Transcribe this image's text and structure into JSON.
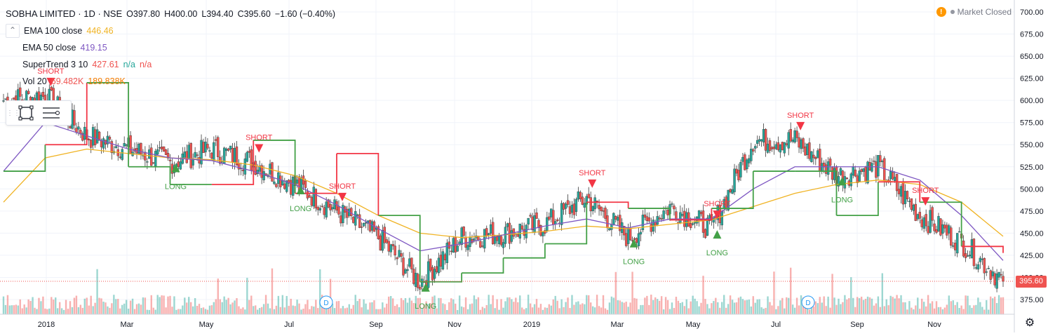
{
  "header": {
    "title": "SOBHA LIMITED · 1D · NSE",
    "open": "O397.80",
    "high": "H400.00",
    "low": "L394.40",
    "close": "C395.60",
    "change": "−1.60 (−0.40%)",
    "status": "Market Closed",
    "status_icon": "warning-icon"
  },
  "indicators": [
    {
      "name": "EMA 100 close",
      "value": "446.46",
      "color": "#f0b323"
    },
    {
      "name": "EMA 50 close",
      "value": "419.15",
      "color": "#7e57c2"
    },
    {
      "name": "SuperTrend 3 10",
      "value": "427.61",
      "value_color": "#ef5350",
      "extra1": "n/a",
      "extra1_color": "#26a69a",
      "extra2": "n/a",
      "extra2_color": "#ef5350"
    },
    {
      "name": "Vol 20",
      "value": "69.482K",
      "value_color": "#ef5350",
      "extra1": "189.838K",
      "extra1_color": "#f57c00"
    }
  ],
  "colors": {
    "up": "#26a69a",
    "down": "#ef5350",
    "ema100": "#f0b323",
    "ema50": "#7e57c2",
    "st_up": "#43a047",
    "st_down": "#f23645",
    "grid": "#f0f3fa",
    "axis_text": "#131722"
  },
  "price_axis": {
    "ticks": [
      "700.00",
      "675.00",
      "650.00",
      "625.00",
      "600.00",
      "575.00",
      "550.00",
      "525.00",
      "500.00",
      "475.00",
      "450.00",
      "425.00",
      "400.00",
      "375.00"
    ],
    "current_price": "395.60"
  },
  "time_axis": {
    "labels": [
      "2018",
      "Mar",
      "May",
      "Jul",
      "Sep",
      "Nov",
      "2019",
      "Mar",
      "May",
      "Jul",
      "Sep",
      "Nov"
    ]
  },
  "signals": {
    "long_label": "LONG",
    "short_label": "SHORT",
    "dividend_label": "D"
  },
  "chart_data": {
    "type": "candlestick",
    "symbol": "SOBHA LIMITED",
    "interval": "1D",
    "exchange": "NSE",
    "x": [
      "2017-12",
      "2018-01",
      "2018-02",
      "2018-03",
      "2018-04",
      "2018-05",
      "2018-06",
      "2018-07",
      "2018-08",
      "2018-09",
      "2018-10",
      "2018-11",
      "2018-12",
      "2019-01",
      "2019-02",
      "2019-03",
      "2019-04",
      "2019-05",
      "2019-06",
      "2019-07",
      "2019-08",
      "2019-09",
      "2019-10",
      "2019-11",
      "2019-12"
    ],
    "series": [
      {
        "name": "Close",
        "values": [
          600,
          605,
          560,
          545,
          530,
          545,
          530,
          505,
          475,
          445,
          395,
          445,
          450,
          460,
          490,
          445,
          480,
          455,
          555,
          555,
          515,
          525,
          470,
          440,
          395.6
        ]
      },
      {
        "name": "EMA 100 close",
        "values": [
          485,
          535,
          545,
          540,
          535,
          533,
          527,
          515,
          495,
          470,
          450,
          445,
          448,
          452,
          458,
          455,
          460,
          465,
          480,
          495,
          505,
          510,
          505,
          485,
          446.46
        ]
      },
      {
        "name": "EMA 50 close",
        "values": [
          520,
          575,
          560,
          545,
          535,
          532,
          520,
          505,
          482,
          455,
          430,
          438,
          448,
          458,
          466,
          456,
          466,
          466,
          500,
          525,
          525,
          525,
          510,
          470,
          419.15
        ]
      },
      {
        "name": "SuperTrend 3 10",
        "values": [
          520,
          550,
          620,
          525,
          505,
          505,
          555,
          495,
          540,
          470,
          395,
          405,
          422,
          438,
          485,
          478,
          465,
          478,
          520,
          520,
          470,
          508,
          485,
          435,
          427.61
        ]
      },
      {
        "name": "Vol 20",
        "values": [
          120,
          200,
          90,
          80,
          90,
          70,
          80,
          100,
          90,
          110,
          120,
          90,
          80,
          90,
          85,
          90,
          80,
          85,
          100,
          110,
          100,
          90,
          85,
          80,
          69.482
        ]
      }
    ],
    "volume_note": "Volume MA 189.838K",
    "signals": [
      {
        "type": "SHORT",
        "x": "2018-01"
      },
      {
        "type": "LONG",
        "x": "2018-04"
      },
      {
        "type": "SHORT",
        "x": "2018-06"
      },
      {
        "type": "LONG",
        "x": "2018-07"
      },
      {
        "type": "SHORT",
        "x": "2018-08"
      },
      {
        "type": "LONG",
        "x": "2018-10"
      },
      {
        "type": "SHORT",
        "x": "2019-02"
      },
      {
        "type": "LONG",
        "x": "2019-03"
      },
      {
        "type": "SHORT",
        "x": "2019-05"
      },
      {
        "type": "LONG",
        "x": "2019-05"
      },
      {
        "type": "SHORT",
        "x": "2019-07"
      },
      {
        "type": "LONG",
        "x": "2019-08"
      },
      {
        "type": "SHORT",
        "x": "2019-10"
      }
    ],
    "ylim": [
      365,
      710
    ],
    "xlabel": "",
    "ylabel": "",
    "grid": true,
    "legend": "top-left"
  }
}
